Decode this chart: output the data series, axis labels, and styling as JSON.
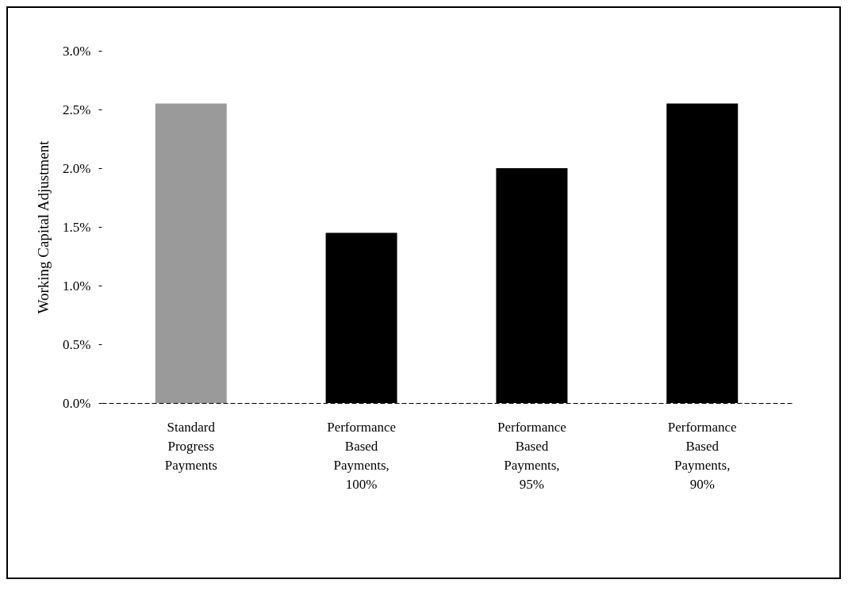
{
  "chart_data": {
    "type": "bar",
    "ylabel": "Working Capital Adjustment",
    "categories": [
      "Standard Progress Payments",
      "Performance Based Payments, 100%",
      "Performance Based Payments, 95%",
      "Performance Based Payments, 90%"
    ],
    "values": [
      2.55,
      1.45,
      2.0,
      2.55
    ],
    "colors": [
      "#9a9a9a",
      "#000000",
      "#000000",
      "#000000"
    ],
    "ylim": [
      0,
      3
    ],
    "yticks": [
      {
        "value": 0,
        "label": "0.0%"
      },
      {
        "value": 0.5,
        "label": "0.5%"
      },
      {
        "value": 1,
        "label": "1.0%"
      },
      {
        "value": 1.5,
        "label": "1.5%"
      },
      {
        "value": 2,
        "label": "2.0%"
      },
      {
        "value": 2.5,
        "label": "2.5%"
      },
      {
        "value": 3,
        "label": "3.0%"
      }
    ],
    "grid": false,
    "legend": false
  }
}
